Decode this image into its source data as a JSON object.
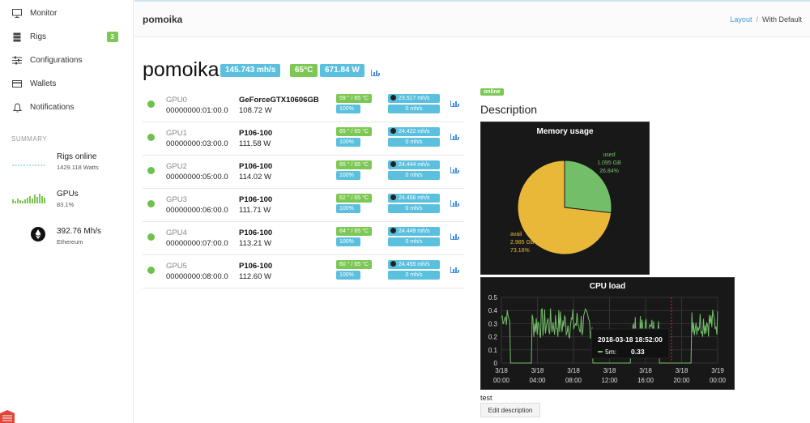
{
  "nav": {
    "items": [
      {
        "label": "Monitor",
        "icon": "monitor-icon"
      },
      {
        "label": "Rigs",
        "icon": "server-icon",
        "badge": "3"
      },
      {
        "label": "Configurations",
        "icon": "sliders-icon"
      },
      {
        "label": "Wallets",
        "icon": "credit-card-icon"
      },
      {
        "label": "Notifications",
        "icon": "bell-icon"
      }
    ]
  },
  "summary": {
    "title": "SUMMARY",
    "rigs_online": {
      "label": "Rigs online",
      "sub": "1429.118 Watts"
    },
    "gpus": {
      "label": "GPUs",
      "sub": "83.1%"
    },
    "hashrate": {
      "label": "392.76 Mh/s",
      "sub": "Ethereum"
    }
  },
  "header": {
    "title": "pomoika",
    "breadcrumb": {
      "link": "Layout",
      "separator": "/",
      "current": "With Default"
    }
  },
  "rig": {
    "name": "pomoika",
    "hashrate": "145.743 mh/s",
    "temp": "65°C",
    "power": "671.84 W"
  },
  "gpus": [
    {
      "name": "GPU0",
      "bus": "00000000:01:00.0",
      "model": "GeForceGTX10606GB",
      "power": "108.72 W",
      "temp": "59 ° / 65 °C",
      "fan": "100%",
      "hashrate": "23.517 mh/s",
      "shares": "0 mh/s"
    },
    {
      "name": "GPU1",
      "bus": "00000000:03:00.0",
      "model": "P106-100",
      "power": "111.58 W",
      "temp": "65 ° / 65 °C",
      "fan": "100%",
      "hashrate": "24.422 mh/s",
      "shares": "0 mh/s"
    },
    {
      "name": "GPU2",
      "bus": "00000000:05:00.0",
      "model": "P106-100",
      "power": "114.02 W",
      "temp": "65 ° / 65 °C",
      "fan": "100%",
      "hashrate": "24.444 mh/s",
      "shares": "0 mh/s"
    },
    {
      "name": "GPU3",
      "bus": "00000000:06:00.0",
      "model": "P106-100",
      "power": "111.71 W",
      "temp": "62 ° / 65 °C",
      "fan": "100%",
      "hashrate": "24.456 mh/s",
      "shares": "0 mh/s"
    },
    {
      "name": "GPU4",
      "bus": "00000000:07:00.0",
      "model": "P106-100",
      "power": "113.21 W",
      "temp": "64 ° / 65 °C",
      "fan": "100%",
      "hashrate": "24.449 mh/s",
      "shares": "0 mh/s"
    },
    {
      "name": "GPU5",
      "bus": "00000000:08:00.0",
      "model": "P106-100",
      "power": "112.60 W",
      "temp": "60 ° / 65 °C",
      "fan": "100%",
      "hashrate": "24.455 mh/s",
      "shares": "0 mh/s"
    }
  ],
  "status": "online",
  "description": {
    "heading": "Description",
    "text": "test",
    "edit_label": "Edit description"
  },
  "memory_chart": {
    "title": "Memory usage",
    "slices": [
      {
        "name": "used",
        "value_text": "1.095 GB",
        "pct_text": "26.84%",
        "pct": 26.84,
        "color": "#73bf69"
      },
      {
        "name": "avail",
        "value_text": "2.985 GB",
        "pct_text": "73.16%",
        "pct": 73.16,
        "color": "#eab839"
      }
    ]
  },
  "cpu_chart": {
    "title": "CPU load",
    "yticks": [
      "0.5",
      "0.4",
      "0.3",
      "0.2",
      "0.1",
      "0"
    ],
    "xticks": [
      {
        "d": "3/18",
        "t": "00:00"
      },
      {
        "d": "3/18",
        "t": "04:00"
      },
      {
        "d": "3/18",
        "t": "08:00"
      },
      {
        "d": "3/18",
        "t": "12:00"
      },
      {
        "d": "3/18",
        "t": "16:00"
      },
      {
        "d": "3/18",
        "t": "20:00"
      },
      {
        "d": "3/19",
        "t": "00:00"
      }
    ],
    "tooltip": {
      "time": "2018-03-18 18:52:00",
      "series": "5m:",
      "value": "0.33"
    },
    "line_color": "#73bf69"
  },
  "chart_data": {
    "type": "line",
    "title": "CPU load",
    "xlabel": "",
    "ylabel": "",
    "ylim": [
      0,
      0.5
    ],
    "x": [
      "3/18 00:00",
      "3/18 02:00",
      "3/18 04:00",
      "3/18 06:00",
      "3/18 08:00",
      "3/18 10:00",
      "3/18 12:00",
      "3/18 14:00",
      "3/18 16:00",
      "3/18 18:00",
      "3/18 20:00",
      "3/18 22:00",
      "3/19 00:00"
    ],
    "series": [
      {
        "name": "5m",
        "values": [
          0.36,
          0.0,
          0.32,
          0.38,
          0.36,
          0.0,
          0.28,
          0.34,
          0.24,
          0.33,
          0.0,
          0.35,
          0.22
        ]
      }
    ]
  }
}
